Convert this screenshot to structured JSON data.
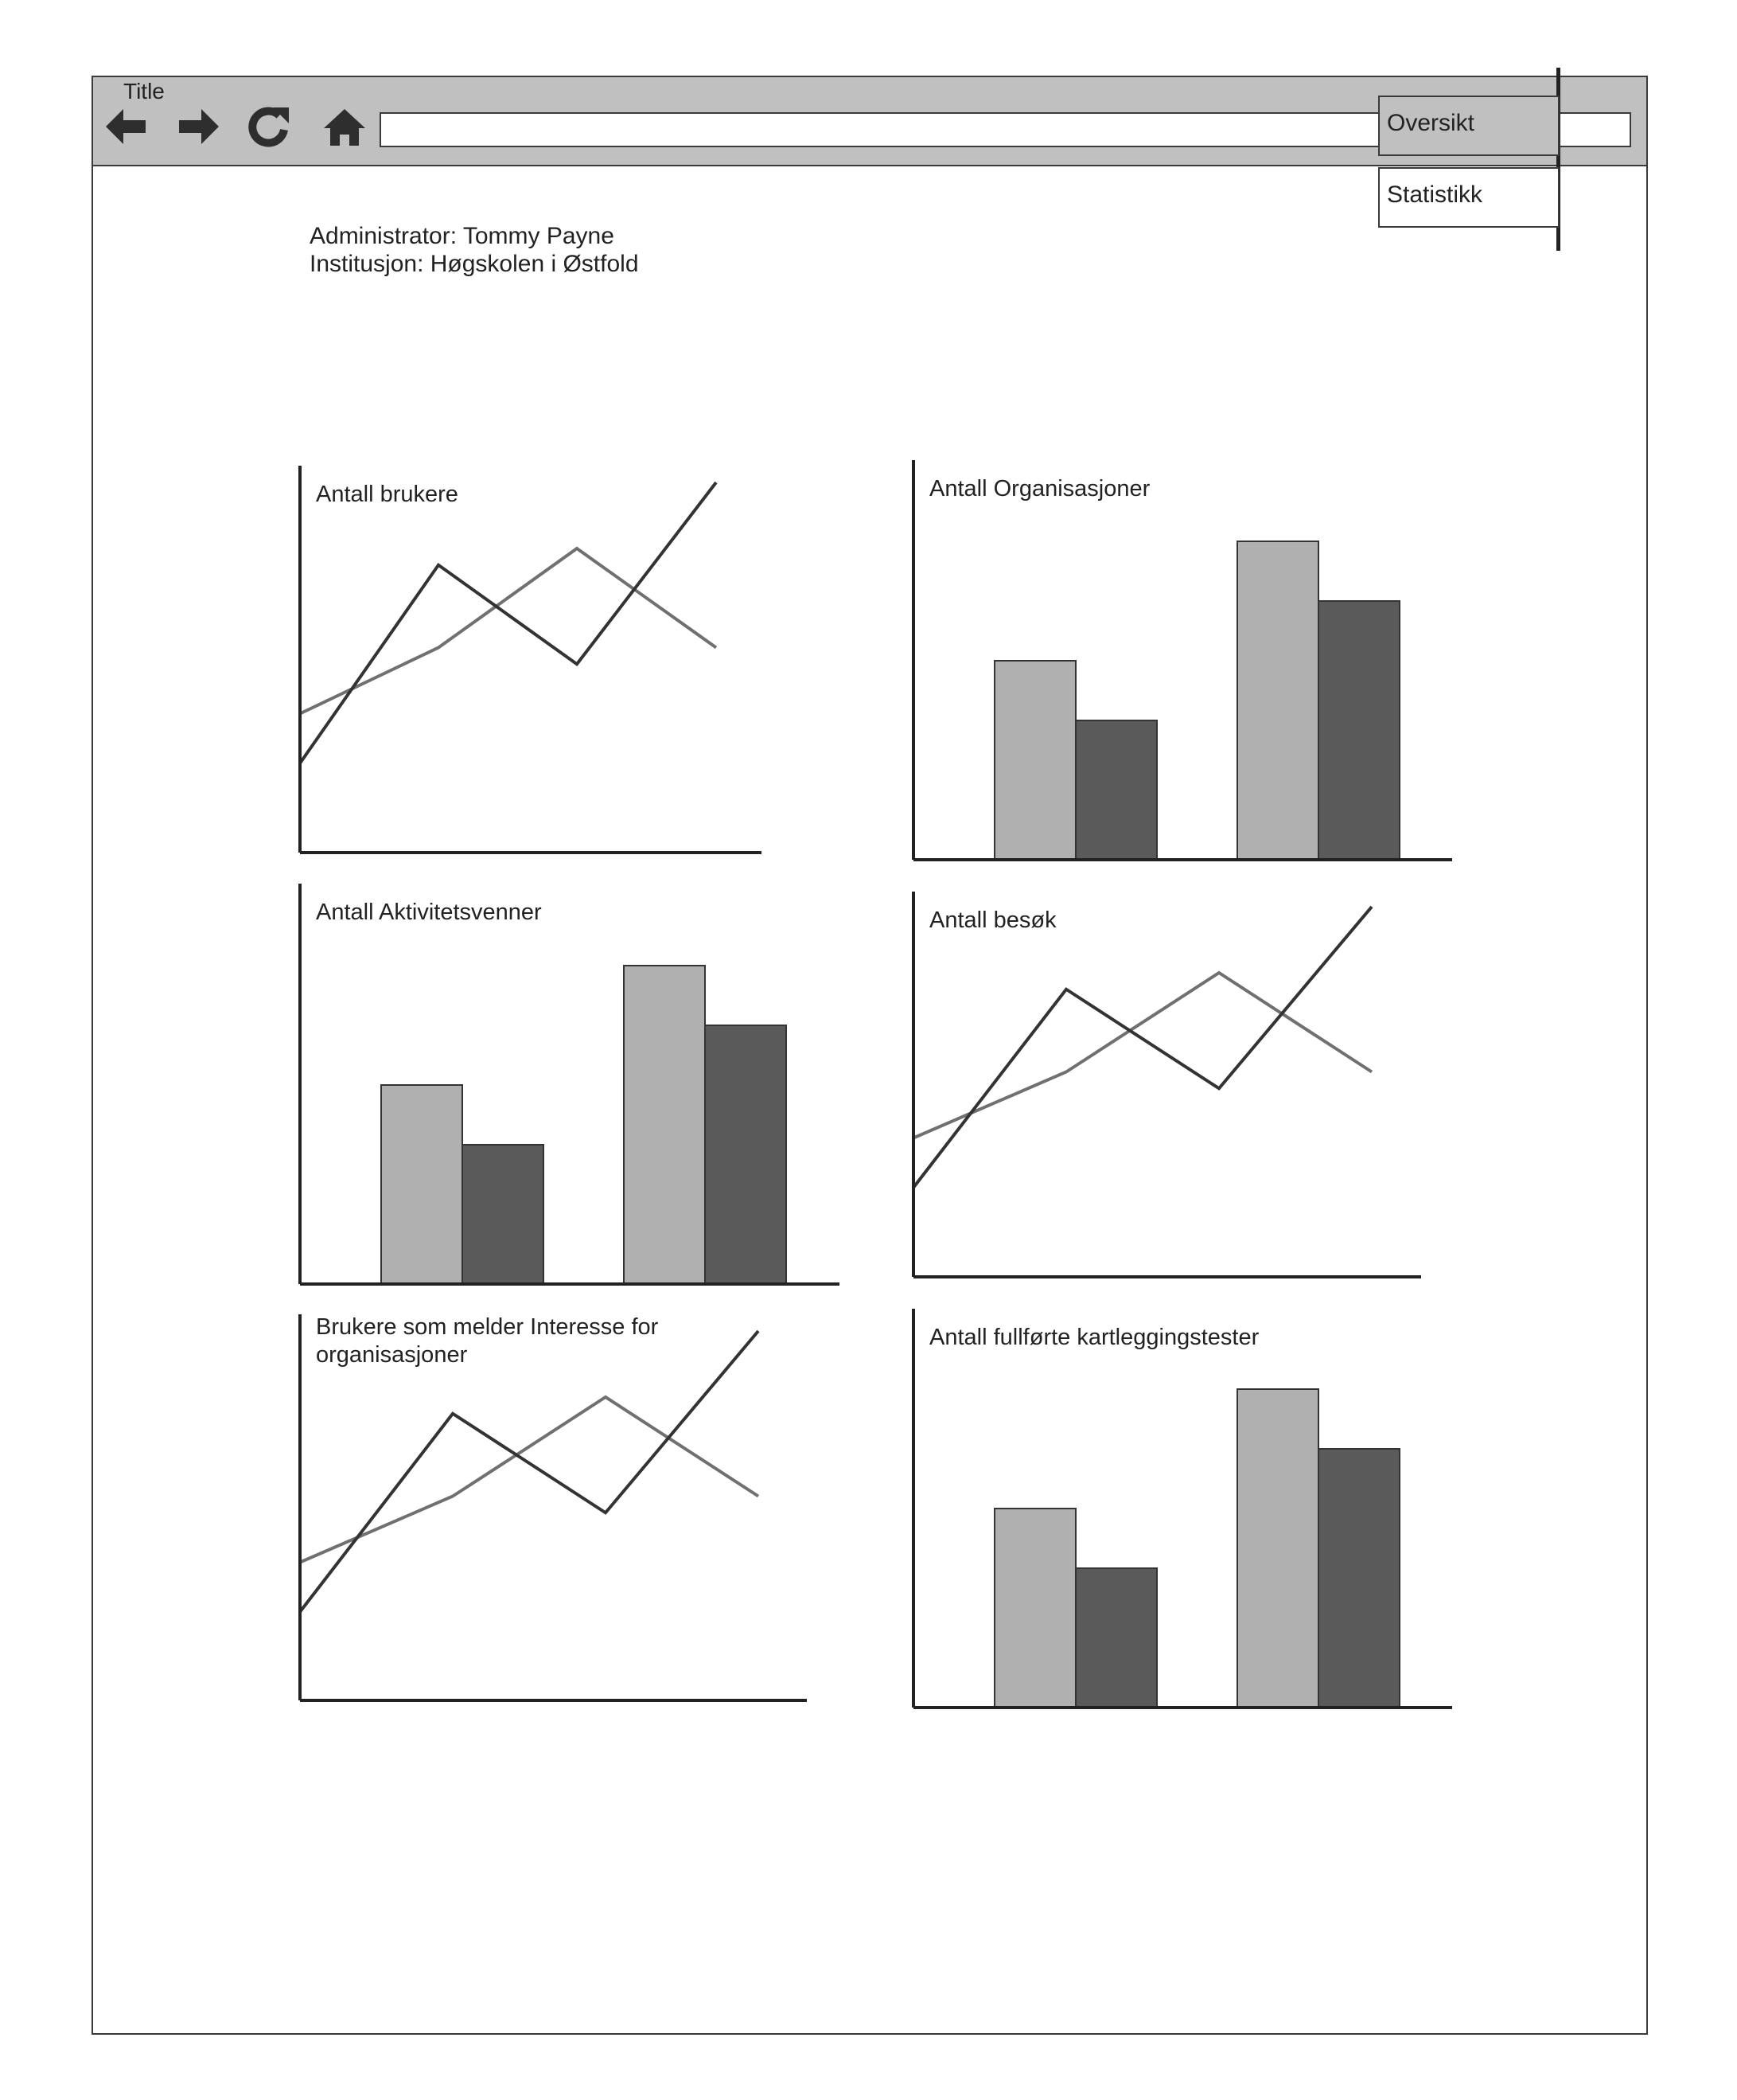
{
  "window": {
    "title": "Title",
    "address": ""
  },
  "nav_icons": [
    "arrow-left-icon",
    "arrow-right-icon",
    "reload-icon",
    "home-icon"
  ],
  "info": {
    "administrator": "Administrator: Tommy Payne",
    "institution": "Institusjon: Høgskolen i Østfold"
  },
  "tabs": [
    {
      "label": "Oversikt",
      "active": true
    },
    {
      "label": "Statistikk",
      "active": false
    }
  ],
  "colors": {
    "toolbar": "#c0c0c0",
    "bar_light": "#b0b0b0",
    "bar_dark": "#5a5a5a",
    "line_light": "#707070",
    "line_dark": "#333333",
    "axis": "#222222"
  },
  "chart_data": [
    {
      "type": "line",
      "title": "Antall brukere",
      "series": [
        {
          "values": [
            30,
            50,
            80,
            50
          ]
        },
        {
          "values": [
            15,
            75,
            45,
            100
          ]
        }
      ]
    },
    {
      "type": "bar",
      "title": "Antall Organisasjoner",
      "series": [
        {
          "values": [
            50,
            80
          ]
        },
        {
          "values": [
            35,
            65
          ]
        }
      ]
    },
    {
      "type": "bar",
      "title": "Antall Aktivitetsvenner",
      "series": [
        {
          "values": [
            50,
            80
          ]
        },
        {
          "values": [
            35,
            65
          ]
        }
      ]
    },
    {
      "type": "line",
      "title": "Antall besøk",
      "series": [
        {
          "values": [
            30,
            50,
            80,
            50
          ]
        },
        {
          "values": [
            15,
            75,
            45,
            100
          ]
        }
      ]
    },
    {
      "type": "line",
      "title": "Brukere som melder Interesse for organisasjoner",
      "series": [
        {
          "values": [
            30,
            50,
            80,
            50
          ]
        },
        {
          "values": [
            15,
            75,
            45,
            100
          ]
        }
      ]
    },
    {
      "type": "bar",
      "title": "Antall fullførte kartleggingstester",
      "series": [
        {
          "values": [
            50,
            80
          ]
        },
        {
          "values": [
            35,
            65
          ]
        }
      ]
    }
  ]
}
